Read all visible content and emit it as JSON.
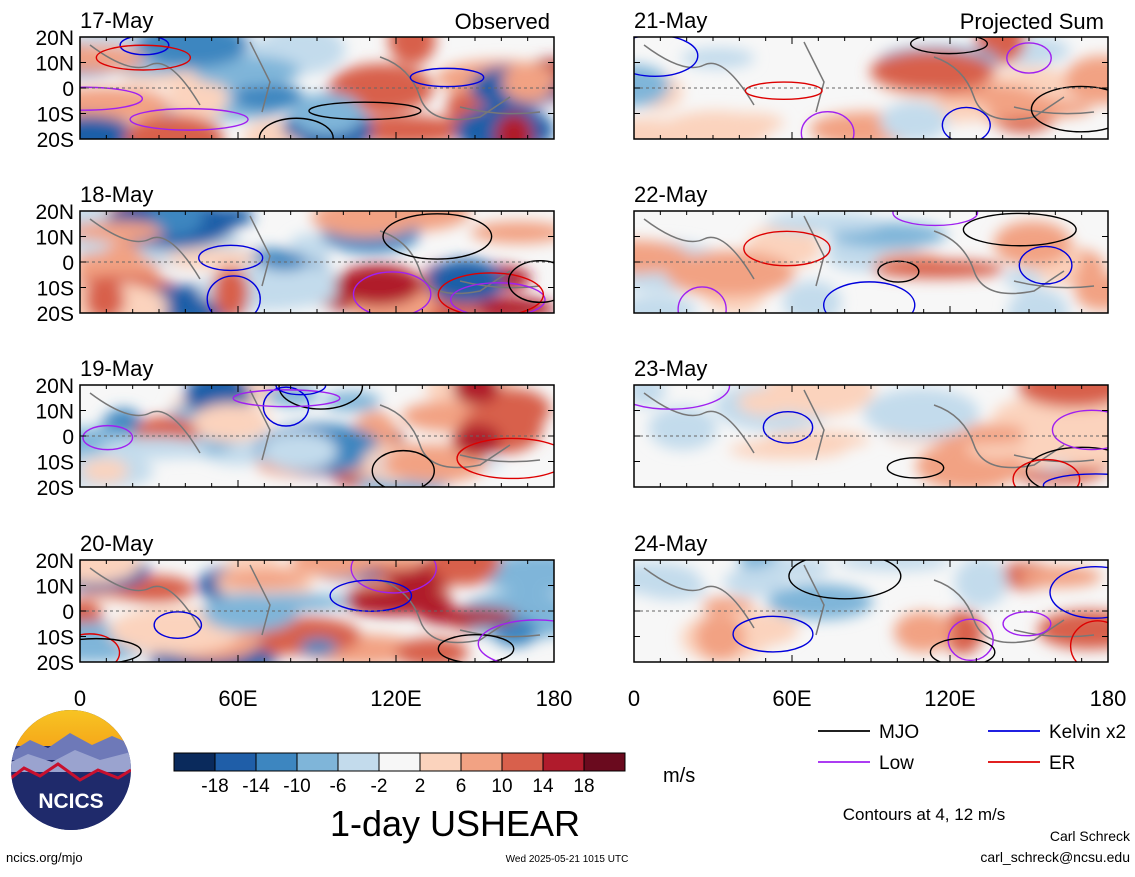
{
  "figure": {
    "title": "1-day USHEAR",
    "units": "m/s",
    "contour_note": "Contours at 4, 12 m/s",
    "left_column_label": "Observed",
    "right_column_label": "Projected Sum",
    "footer_left": "ncics.org/mjo",
    "footer_center": "Wed 2025-05-21 1015 UTC",
    "author_name": "Carl Schreck",
    "author_email": "carl_schreck@ncsu.edu",
    "logo_text": "NCICS"
  },
  "colorbar": {
    "tick_labels": [
      "-18",
      "-14",
      "-10",
      "-6",
      "-2",
      "2",
      "6",
      "10",
      "14",
      "18"
    ],
    "colors": [
      "#0a2a5c",
      "#1f5ea8",
      "#3d86c0",
      "#7fb5d9",
      "#c3dbec",
      "#f7f7f7",
      "#fbd3bd",
      "#f2a283",
      "#d8604c",
      "#b01b2c",
      "#6a0a1e"
    ]
  },
  "legend": [
    {
      "label": "MJO",
      "color": "#000000"
    },
    {
      "label": "Kelvin x2",
      "color": "#0000dd"
    },
    {
      "label": "Low",
      "color": "#a020f0"
    },
    {
      "label": "ER",
      "color": "#dd0000"
    }
  ],
  "chart_data": {
    "type": "heatmap",
    "variable": "1-day USHEAR",
    "units": "m/s",
    "levels": [
      -18,
      -14,
      -10,
      -6,
      -2,
      2,
      6,
      10,
      14,
      18
    ],
    "contour_levels_m_s": [
      4,
      12
    ],
    "ylabels": [
      "20N",
      "10N",
      "0",
      "10S",
      "20S"
    ],
    "xlabels": [
      "0",
      "60E",
      "120E",
      "180"
    ],
    "xlim": [
      0,
      180
    ],
    "ylim": [
      -20,
      20
    ],
    "panels": [
      {
        "date": "17-May",
        "column": "Observed"
      },
      {
        "date": "18-May",
        "column": "Observed"
      },
      {
        "date": "19-May",
        "column": "Observed"
      },
      {
        "date": "20-May",
        "column": "Observed"
      },
      {
        "date": "21-May",
        "column": "Projected Sum"
      },
      {
        "date": "22-May",
        "column": "Projected Sum"
      },
      {
        "date": "23-May",
        "column": "Projected Sum"
      },
      {
        "date": "24-May",
        "column": "Projected Sum"
      }
    ]
  }
}
